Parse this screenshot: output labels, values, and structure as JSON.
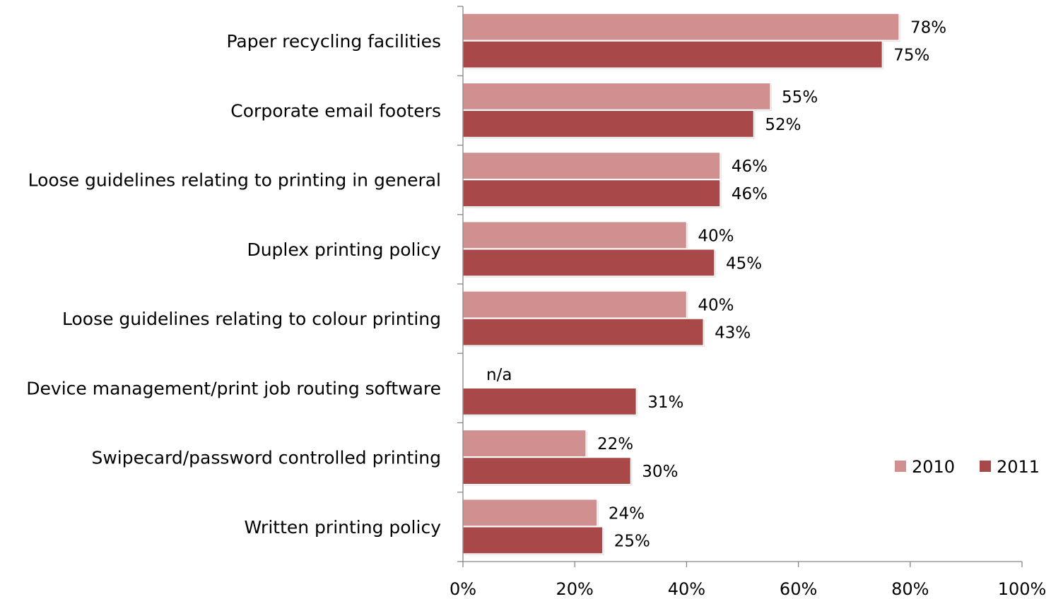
{
  "chart_data": {
    "type": "bar",
    "orientation": "horizontal",
    "categories": [
      "Paper recycling facilities",
      "Corporate email footers",
      "Loose guidelines relating to printing in general",
      "Duplex printing policy",
      "Loose guidelines relating to colour printing",
      "Device management/print job routing software",
      "Swipecard/password controlled printing",
      "Written printing policy"
    ],
    "series": [
      {
        "name": "2010",
        "color": "#d09090",
        "values": [
          78,
          55,
          46,
          40,
          40,
          null,
          22,
          24
        ],
        "labels": [
          "78%",
          "55%",
          "46%",
          "40%",
          "40%",
          "n/a",
          "22%",
          "24%"
        ]
      },
      {
        "name": "2011",
        "color": "#a84848",
        "values": [
          75,
          52,
          46,
          45,
          43,
          31,
          30,
          25
        ],
        "labels": [
          "75%",
          "52%",
          "46%",
          "45%",
          "43%",
          "31%",
          "30%",
          "25%"
        ]
      }
    ],
    "xlim": [
      0,
      100
    ],
    "xticks": [
      "0%",
      "20%",
      "40%",
      "60%",
      "80%",
      "100%"
    ],
    "xlabel": "",
    "ylabel": "",
    "title": "",
    "grid": false,
    "legend": {
      "position": "right",
      "entries": [
        "2010",
        "2011"
      ]
    }
  }
}
